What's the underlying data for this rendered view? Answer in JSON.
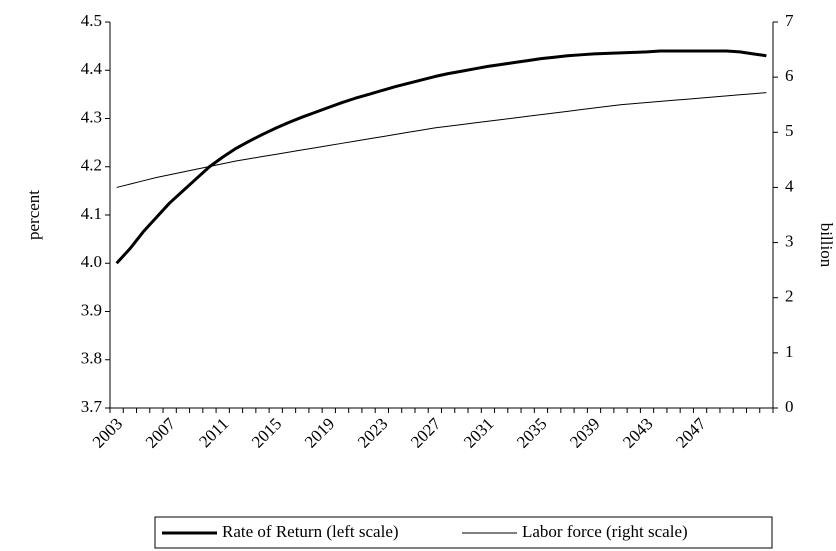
{
  "chart_data": {
    "type": "line",
    "ylabel": "percent",
    "y2label": "billion",
    "categories": [
      "2003",
      null,
      null,
      null,
      "2007",
      null,
      null,
      null,
      "2011",
      null,
      null,
      null,
      "2015",
      null,
      null,
      null,
      "2019",
      null,
      null,
      null,
      "2023",
      null,
      null,
      null,
      "2027",
      null,
      null,
      null,
      "2031",
      null,
      null,
      null,
      "2035",
      null,
      null,
      null,
      "2039",
      null,
      null,
      null,
      "2043",
      null,
      null,
      null,
      "2047",
      null,
      null,
      null,
      null,
      null
    ],
    "ylim": [
      3.7,
      4.5
    ],
    "yticks": [
      3.7,
      3.8,
      3.9,
      {
        "value": 4.0,
        "label": "4.0"
      },
      4.1,
      4.2,
      4.3,
      4.4,
      4.5
    ],
    "y2lim": [
      0,
      7
    ],
    "y2ticks": [
      0,
      1,
      2,
      3,
      4,
      5,
      6,
      7
    ],
    "series": [
      {
        "name": "Rate of Return (left scale)",
        "color": "#000000",
        "width": 3,
        "values": [
          4.0,
          4.03,
          4.065,
          4.095,
          4.125,
          4.15,
          4.175,
          4.2,
          4.22,
          4.238,
          4.253,
          4.267,
          4.28,
          4.292,
          4.303,
          4.313,
          4.323,
          4.333,
          4.342,
          4.35,
          4.358,
          4.366,
          4.373,
          4.38,
          4.387,
          4.393,
          4.398,
          4.403,
          4.408,
          4.412,
          4.416,
          4.42,
          4.424,
          4.427,
          4.43,
          4.432,
          4.434,
          4.435,
          4.436,
          4.437,
          4.438,
          4.44,
          4.44,
          4.44,
          4.44,
          4.44,
          4.44,
          4.438,
          4.434,
          4.43
        ]
      },
      {
        "name": "Labor force (right scale)",
        "color": "#000000",
        "width": 1,
        "axis": "y2",
        "values": [
          4.0,
          4.06,
          4.12,
          4.18,
          4.23,
          4.28,
          4.33,
          4.38,
          4.43,
          4.48,
          4.52,
          4.56,
          4.6,
          4.64,
          4.68,
          4.72,
          4.76,
          4.8,
          4.84,
          4.88,
          4.92,
          4.96,
          5.0,
          5.04,
          5.08,
          5.11,
          5.14,
          5.17,
          5.2,
          5.23,
          5.26,
          5.29,
          5.32,
          5.35,
          5.38,
          5.41,
          5.44,
          5.47,
          5.5,
          5.52,
          5.54,
          5.56,
          5.58,
          5.6,
          5.62,
          5.64,
          5.66,
          5.68,
          5.7,
          5.72
        ]
      }
    ]
  }
}
